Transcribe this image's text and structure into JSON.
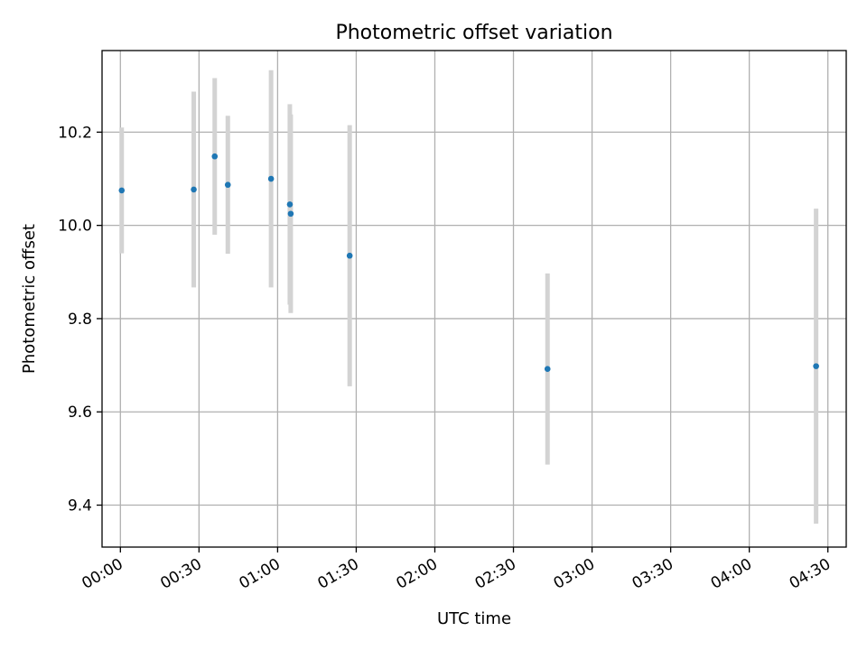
{
  "chart_data": {
    "type": "scatter",
    "title": "Photometric offset variation",
    "xlabel": "UTC time",
    "ylabel": "Photometric offset",
    "x_unit": "HH:MM",
    "xlim": [
      "-00:07",
      "04:37"
    ],
    "ylim": [
      9.31,
      10.375
    ],
    "x_ticks": [
      "00:00",
      "00:30",
      "01:00",
      "01:30",
      "02:00",
      "02:30",
      "03:00",
      "03:30",
      "04:00",
      "04:30"
    ],
    "y_ticks": [
      9.4,
      9.6,
      9.8,
      10.0,
      10.2
    ],
    "y_tick_labels": [
      "9.4",
      "9.6",
      "9.8",
      "10.0",
      "10.2"
    ],
    "grid": true,
    "legend": "none",
    "points": [
      {
        "x": "00:00:30",
        "y": 10.075,
        "err": 0.135
      },
      {
        "x": "00:28:00",
        "y": 10.077,
        "err": 0.21
      },
      {
        "x": "00:36:00",
        "y": 10.148,
        "err": 0.168
      },
      {
        "x": "00:41:00",
        "y": 10.087,
        "err": 0.148
      },
      {
        "x": "00:57:30",
        "y": 10.1,
        "err": 0.233
      },
      {
        "x": "01:04:40",
        "y": 10.045,
        "err": 0.215
      },
      {
        "x": "01:05:00",
        "y": 10.025,
        "err": 0.213
      },
      {
        "x": "01:27:30",
        "y": 9.935,
        "err": 0.28
      },
      {
        "x": "02:43:00",
        "y": 9.692,
        "err": 0.205
      },
      {
        "x": "04:25:30",
        "y": 9.698,
        "err": 0.338
      }
    ],
    "colors": {
      "marker": "#1f77b4",
      "errorbar": "#d3d3d3",
      "grid": "#b0b0b0",
      "frame": "#000000"
    }
  }
}
